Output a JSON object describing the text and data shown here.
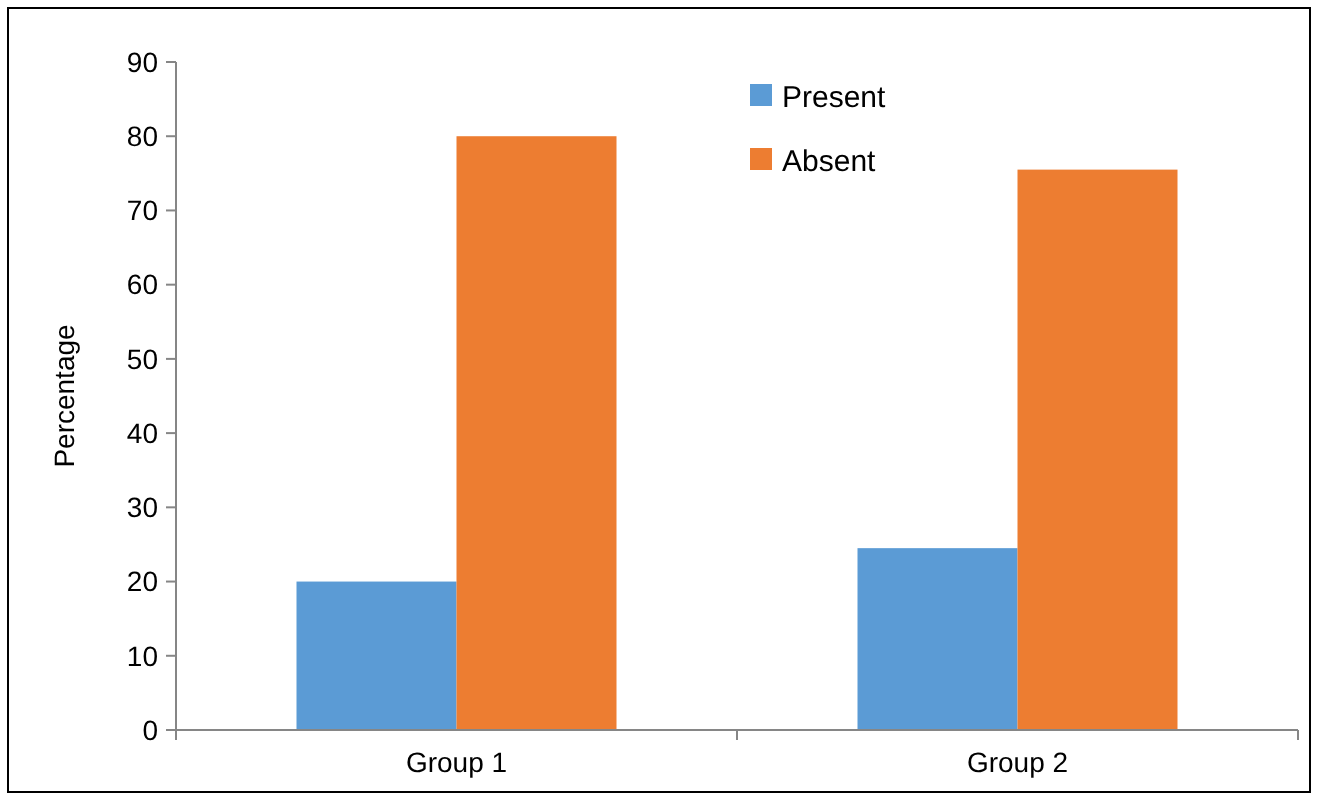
{
  "chart_data": {
    "type": "bar",
    "ylabel": "Percentage",
    "categories": [
      "Group 1",
      "Group 2"
    ],
    "series": [
      {
        "name": "Present",
        "color": "#5b9bd5",
        "values": [
          20,
          24.5
        ]
      },
      {
        "name": "Absent",
        "color": "#ed7d31",
        "values": [
          80,
          75.5
        ]
      }
    ],
    "ylim": [
      0,
      90
    ],
    "yticks": [
      0,
      10,
      20,
      30,
      40,
      50,
      60,
      70,
      80,
      90
    ],
    "grid": false,
    "legend": "top right"
  }
}
